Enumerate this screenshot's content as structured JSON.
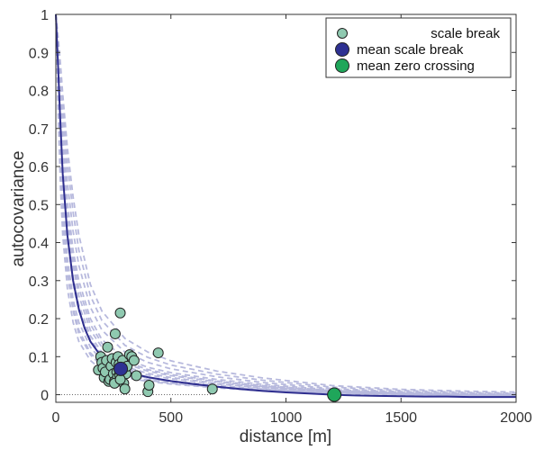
{
  "chart_data": {
    "type": "line",
    "xlabel": "distance [m]",
    "ylabel": "autocovariance",
    "xlim": [
      0,
      2000
    ],
    "ylim": [
      -0.02,
      1.0
    ],
    "xticks": [
      0,
      500,
      1000,
      1500,
      2000
    ],
    "yticks": [
      0,
      0.1,
      0.2,
      0.3,
      0.4,
      0.5,
      0.6,
      0.7,
      0.8,
      0.9,
      1
    ],
    "x_tick_labels": [
      "0",
      "500",
      "1000",
      "1500",
      "2000"
    ],
    "y_tick_labels": [
      "0",
      "0.1",
      "0.2",
      "0.3",
      "0.4",
      "0.5",
      "0.6",
      "0.7",
      "0.8",
      "0.9",
      "1"
    ],
    "grid": false,
    "legend_position": "top-right",
    "legend": [
      {
        "label": "scale break",
        "marker": "circle-small",
        "color": "#8fc9b0"
      },
      {
        "label": "mean scale break",
        "marker": "circle-large",
        "color": "#2e3192"
      },
      {
        "label": "mean zero crossing",
        "marker": "circle-large",
        "color": "#1fa65a"
      }
    ],
    "colors": {
      "mean_curve": "#2e2e8f",
      "individual_curves": "#b7b9dd",
      "scale_break": "#8fc9b0",
      "mean_scale_break": "#2e3192",
      "mean_zero_crossing": "#1fa65a"
    },
    "mean_curve": {
      "style": "solid",
      "x": [
        0,
        10,
        20,
        30,
        50,
        75,
        100,
        125,
        150,
        200,
        250,
        300,
        350,
        400,
        500,
        600,
        700,
        800,
        900,
        1000,
        1100,
        1200,
        1300,
        1400,
        1500,
        1600,
        1700,
        1800,
        1900,
        2000
      ],
      "y": [
        1.0,
        0.86,
        0.71,
        0.58,
        0.42,
        0.3,
        0.225,
        0.175,
        0.14,
        0.098,
        0.075,
        0.062,
        0.053,
        0.046,
        0.036,
        0.028,
        0.021,
        0.015,
        0.01,
        0.006,
        0.003,
        0.0,
        -0.002,
        -0.003,
        -0.004,
        -0.005,
        -0.005,
        -0.006,
        -0.006,
        -0.006
      ]
    },
    "individual_curves": {
      "style": "dashed",
      "x": [
        0,
        10,
        20,
        30,
        50,
        75,
        100,
        150,
        200,
        300,
        400,
        500,
        700,
        900,
        1200,
        1500,
        1800,
        2000
      ],
      "series": [
        {
          "y": [
            1.0,
            0.74,
            0.55,
            0.42,
            0.28,
            0.19,
            0.14,
            0.09,
            0.065,
            0.045,
            0.035,
            0.028,
            0.018,
            0.01,
            0.004,
            0.0,
            -0.003,
            -0.004
          ]
        },
        {
          "y": [
            1.0,
            0.78,
            0.6,
            0.47,
            0.32,
            0.22,
            0.16,
            0.105,
            0.075,
            0.05,
            0.038,
            0.03,
            0.02,
            0.012,
            0.005,
            0.001,
            -0.002,
            -0.003
          ]
        },
        {
          "y": [
            1.0,
            0.82,
            0.65,
            0.52,
            0.36,
            0.25,
            0.19,
            0.125,
            0.09,
            0.058,
            0.044,
            0.036,
            0.024,
            0.015,
            0.006,
            0.002,
            -0.002,
            -0.003
          ]
        },
        {
          "y": [
            1.0,
            0.85,
            0.7,
            0.57,
            0.41,
            0.29,
            0.22,
            0.145,
            0.105,
            0.068,
            0.052,
            0.042,
            0.028,
            0.018,
            0.008,
            0.003,
            -0.001,
            -0.002
          ]
        },
        {
          "y": [
            1.0,
            0.88,
            0.74,
            0.62,
            0.46,
            0.34,
            0.26,
            0.17,
            0.125,
            0.082,
            0.062,
            0.05,
            0.034,
            0.022,
            0.01,
            0.004,
            0.0,
            -0.001
          ]
        },
        {
          "y": [
            1.0,
            0.9,
            0.78,
            0.67,
            0.51,
            0.38,
            0.3,
            0.2,
            0.145,
            0.095,
            0.072,
            0.058,
            0.04,
            0.027,
            0.013,
            0.006,
            0.002,
            0.001
          ]
        },
        {
          "y": [
            1.0,
            0.92,
            0.82,
            0.72,
            0.56,
            0.43,
            0.34,
            0.23,
            0.17,
            0.112,
            0.085,
            0.068,
            0.047,
            0.032,
            0.016,
            0.008,
            0.004,
            0.002
          ]
        },
        {
          "y": [
            1.0,
            0.93,
            0.85,
            0.76,
            0.61,
            0.48,
            0.38,
            0.26,
            0.195,
            0.13,
            0.098,
            0.078,
            0.054,
            0.038,
            0.02,
            0.011,
            0.006,
            0.004
          ]
        },
        {
          "y": [
            1.0,
            0.94,
            0.87,
            0.79,
            0.65,
            0.52,
            0.42,
            0.29,
            0.22,
            0.148,
            0.112,
            0.089,
            0.062,
            0.044,
            0.024,
            0.014,
            0.009,
            0.007
          ]
        },
        {
          "y": [
            1.0,
            0.8,
            0.62,
            0.49,
            0.34,
            0.23,
            0.17,
            0.11,
            0.08,
            0.053,
            0.04,
            0.032,
            0.021,
            0.013,
            0.005,
            0.001,
            -0.002,
            -0.003
          ]
        },
        {
          "y": [
            1.0,
            0.86,
            0.72,
            0.59,
            0.43,
            0.31,
            0.235,
            0.155,
            0.112,
            0.074,
            0.056,
            0.045,
            0.03,
            0.02,
            0.009,
            0.003,
            0.0,
            -0.001
          ]
        },
        {
          "y": [
            1.0,
            0.89,
            0.76,
            0.64,
            0.48,
            0.36,
            0.28,
            0.185,
            0.135,
            0.088,
            0.066,
            0.053,
            0.036,
            0.024,
            0.011,
            0.005,
            0.001,
            0.0
          ]
        }
      ]
    },
    "scale_breaks": {
      "x": [
        185,
        195,
        200,
        205,
        210,
        215,
        220,
        225,
        230,
        235,
        240,
        245,
        250,
        255,
        258,
        262,
        265,
        268,
        270,
        275,
        278,
        280,
        285,
        290,
        295,
        300,
        305,
        310,
        320,
        330,
        340,
        350,
        400,
        405,
        445,
        680,
        255,
        280
      ],
      "y": [
        0.065,
        0.1,
        0.085,
        0.07,
        0.045,
        0.06,
        0.09,
        0.125,
        0.035,
        0.04,
        0.075,
        0.095,
        0.055,
        0.035,
        0.16,
        0.085,
        0.06,
        0.045,
        0.1,
        0.08,
        0.05,
        0.215,
        0.07,
        0.09,
        0.03,
        0.015,
        0.055,
        0.075,
        0.105,
        0.1,
        0.09,
        0.05,
        0.008,
        0.025,
        0.11,
        0.015,
        0.03,
        0.04
      ]
    },
    "mean_scale_break": {
      "x": 282,
      "y": 0.068
    },
    "mean_zero_crossing": {
      "x": 1210,
      "y": 0.0
    }
  }
}
